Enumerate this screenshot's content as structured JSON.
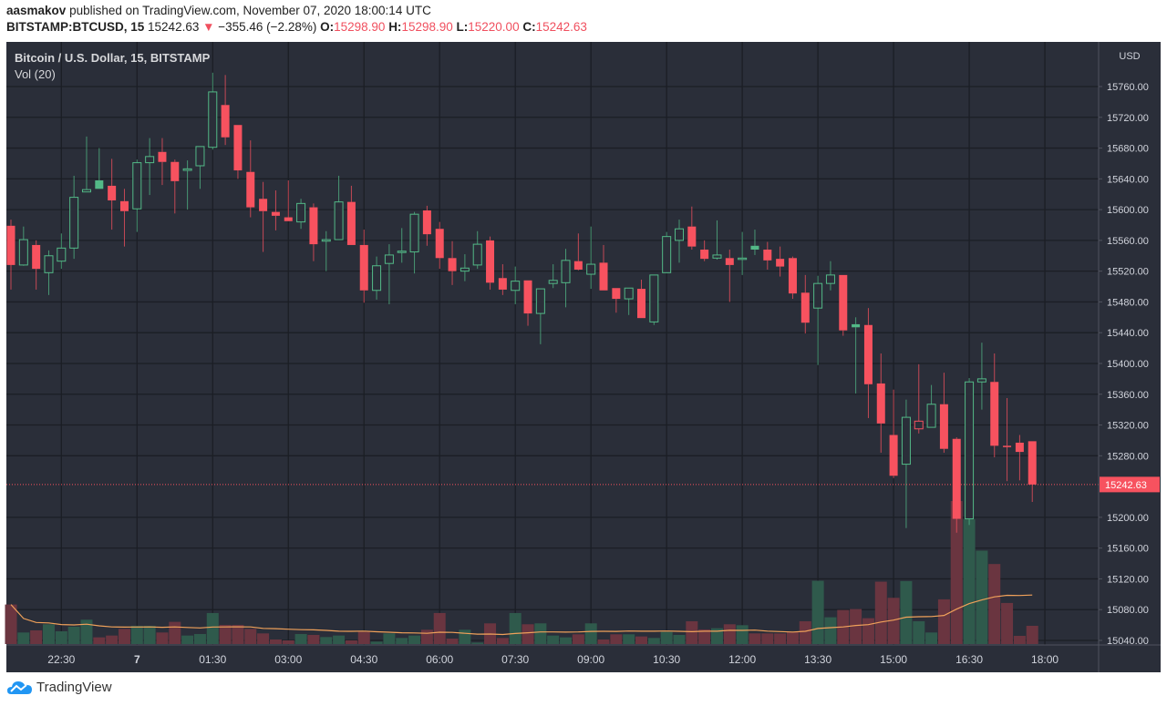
{
  "header": {
    "author": "aasmakov",
    "published_text": "published on TradingView.com, November 07, 2020 18:00:14 UTC",
    "symbol": "BITSTAMP:BTCUSD, 15",
    "last_price": "15242.63",
    "change_icon": "triangle-down-icon",
    "change_arrow": "▼",
    "change": "−355.46 (−2.28%)",
    "open_label": "O:",
    "open": "15298.90",
    "high_label": "H:",
    "high": "15298.90",
    "low_label": "L:",
    "low": "15220.00",
    "close_label": "C:",
    "close": "15242.63"
  },
  "legend": {
    "title": "Bitcoin / U.S. Dollar, 15, BITSTAMP",
    "volume": "Vol (20)"
  },
  "price_axis": {
    "currency": "USD",
    "current_price_label": "15242.63"
  },
  "brand": {
    "name": "TradingView",
    "icon": "tradingview-cloud-logo-icon"
  },
  "colors": {
    "background": "#2a2e39",
    "grid": "#1b1e25",
    "up": "#53b987",
    "down": "#f7525f",
    "volume_up": "#2f5a4c",
    "volume_down": "#6a3540",
    "volume_ma": "#f0a15a",
    "axis_text": "#d1d4dc"
  },
  "chart_data": {
    "type": "candlestick",
    "interval_minutes": 15,
    "style": "hollow candles",
    "first_bar": "Nov 6 21:30",
    "last_bar": "Nov 7 17:45",
    "ylim": [
      15030,
      15795
    ],
    "y_ticks": [
      15760,
      15720,
      15680,
      15640,
      15600,
      15560,
      15520,
      15480,
      15440,
      15400,
      15360,
      15320,
      15280,
      15200,
      15160,
      15120,
      15080,
      15040
    ],
    "x_ticks": [
      {
        "bar": 4,
        "label": "22:30"
      },
      {
        "bar": 10,
        "label": "7"
      },
      {
        "bar": 16,
        "label": "01:30"
      },
      {
        "bar": 22,
        "label": "03:00"
      },
      {
        "bar": 28,
        "label": "04:30"
      },
      {
        "bar": 34,
        "label": "06:00"
      },
      {
        "bar": 40,
        "label": "07:30"
      },
      {
        "bar": 46,
        "label": "09:00"
      },
      {
        "bar": 52,
        "label": "10:30"
      },
      {
        "bar": 58,
        "label": "12:00"
      },
      {
        "bar": 64,
        "label": "13:30"
      },
      {
        "bar": 70,
        "label": "15:00"
      },
      {
        "bar": 76,
        "label": "16:30"
      },
      {
        "bar": 82,
        "label": "18:00"
      }
    ],
    "current_price": 15242.63,
    "volume_ma_length": 20,
    "ohlc": [
      [
        15579,
        15587,
        15496,
        15528
      ],
      [
        15528,
        15578,
        15527,
        15561
      ],
      [
        15554,
        15560,
        15496,
        15523
      ],
      [
        15518,
        15547,
        15489,
        15540
      ],
      [
        15533,
        15569,
        15523,
        15550
      ],
      [
        15550,
        15644,
        15536,
        15616
      ],
      [
        15623,
        15695,
        15623,
        15626
      ],
      [
        15638,
        15680,
        15627,
        15627
      ],
      [
        15631,
        15666,
        15574,
        15612
      ],
      [
        15611,
        15627,
        15552,
        15598
      ],
      [
        15601,
        15665,
        15571,
        15661
      ],
      [
        15661,
        15693,
        15619,
        15669
      ],
      [
        15675,
        15693,
        15632,
        15662
      ],
      [
        15662,
        15665,
        15595,
        15637
      ],
      [
        15651,
        15664,
        15600,
        15653
      ],
      [
        15657,
        15682,
        15627,
        15682
      ],
      [
        15681,
        15778,
        15678,
        15753
      ],
      [
        15736,
        15775,
        15684,
        15694
      ],
      [
        15710,
        15710,
        15640,
        15651
      ],
      [
        15649,
        15690,
        15590,
        15603
      ],
      [
        15614,
        15636,
        15545,
        15598
      ],
      [
        15597,
        15625,
        15573,
        15592
      ],
      [
        15590,
        15638,
        15585,
        15585
      ],
      [
        15584,
        15614,
        15575,
        15608
      ],
      [
        15603,
        15608,
        15533,
        15555
      ],
      [
        15559,
        15572,
        15520,
        15561
      ],
      [
        15561,
        15644,
        15561,
        15610
      ],
      [
        15610,
        15631,
        15554,
        15554
      ],
      [
        15554,
        15574,
        15479,
        15495
      ],
      [
        15495,
        15539,
        15483,
        15527
      ],
      [
        15530,
        15555,
        15477,
        15541
      ],
      [
        15545,
        15576,
        15531,
        15546
      ],
      [
        15545,
        15597,
        15517,
        15594
      ],
      [
        15599,
        15605,
        15553,
        15568
      ],
      [
        15575,
        15584,
        15523,
        15537
      ],
      [
        15537,
        15559,
        15502,
        15520
      ],
      [
        15520,
        15542,
        15507,
        15524
      ],
      [
        15528,
        15572,
        15523,
        15555
      ],
      [
        15560,
        15565,
        15496,
        15505
      ],
      [
        15511,
        15529,
        15489,
        15496
      ],
      [
        15495,
        15526,
        15477,
        15507
      ],
      [
        15508,
        15508,
        15449,
        15465
      ],
      [
        15465,
        15497,
        15425,
        15497
      ],
      [
        15504,
        15529,
        15498,
        15508
      ],
      [
        15505,
        15549,
        15473,
        15534
      ],
      [
        15533,
        15569,
        15521,
        15522
      ],
      [
        15516,
        15578,
        15497,
        15529
      ],
      [
        15531,
        15554,
        15495,
        15495
      ],
      [
        15498,
        15498,
        15466,
        15484
      ],
      [
        15484,
        15498,
        15463,
        15498
      ],
      [
        15497,
        15509,
        15459,
        15459
      ],
      [
        15454,
        15515,
        15450,
        15515
      ],
      [
        15518,
        15571,
        15518,
        15565
      ],
      [
        15560,
        15587,
        15531,
        15575
      ],
      [
        15578,
        15604,
        15548,
        15552
      ],
      [
        15548,
        15560,
        15533,
        15536
      ],
      [
        15537,
        15586,
        15535,
        15541
      ],
      [
        15537,
        15548,
        15480,
        15528
      ],
      [
        15536,
        15571,
        15515,
        15537
      ],
      [
        15553,
        15574,
        15541,
        15548
      ],
      [
        15548,
        15558,
        15522,
        15534
      ],
      [
        15536,
        15552,
        15513,
        15526
      ],
      [
        15537,
        15539,
        15484,
        15491
      ],
      [
        15492,
        15515,
        15439,
        15453
      ],
      [
        15472,
        15514,
        15398,
        15504
      ],
      [
        15504,
        15533,
        15495,
        15515
      ],
      [
        15515,
        15515,
        15436,
        15443
      ],
      [
        15451,
        15460,
        15361,
        15447
      ],
      [
        15450,
        15472,
        15329,
        15373
      ],
      [
        15374,
        15413,
        15284,
        15322
      ],
      [
        15307,
        15366,
        15251,
        15254
      ],
      [
        15269,
        15353,
        15186,
        15330
      ],
      [
        15315,
        15399,
        15309,
        15325
      ],
      [
        15317,
        15372,
        15317,
        15347
      ],
      [
        15347,
        15388,
        15284,
        15289
      ],
      [
        15302,
        15304,
        15180,
        15198
      ],
      [
        15198,
        15381,
        15190,
        15376
      ],
      [
        15376,
        15427,
        15340,
        15380
      ],
      [
        15376,
        15413,
        15278,
        15293
      ],
      [
        15293,
        15355,
        15247,
        15292
      ],
      [
        15297,
        15307,
        15248,
        15285
      ],
      [
        15298.9,
        15298.9,
        15220.0,
        15242.63
      ]
    ],
    "volume": [
      130,
      38,
      45,
      65,
      42,
      57,
      80,
      22,
      28,
      50,
      60,
      60,
      38,
      73,
      28,
      33,
      102,
      63,
      63,
      50,
      35,
      15,
      12,
      33,
      30,
      23,
      28,
      12,
      40,
      8,
      35,
      20,
      28,
      47,
      102,
      18,
      47,
      5,
      68,
      20,
      102,
      65,
      68,
      28,
      22,
      32,
      68,
      15,
      32,
      32,
      25,
      20,
      40,
      30,
      75,
      48,
      52,
      65,
      62,
      35,
      35,
      35,
      40,
      75,
      208,
      88,
      112,
      115,
      85,
      205,
      152,
      207,
      75,
      38,
      147,
      470,
      410,
      307,
      263,
      135,
      27,
      60
    ]
  }
}
